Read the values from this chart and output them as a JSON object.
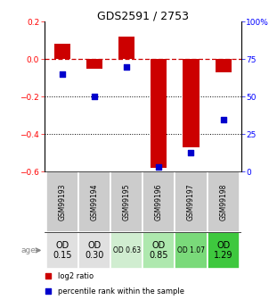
{
  "title": "GDS2591 / 2753",
  "samples": [
    "GSM99193",
    "GSM99194",
    "GSM99195",
    "GSM99196",
    "GSM99197",
    "GSM99198"
  ],
  "log2_ratio": [
    0.08,
    -0.05,
    0.12,
    -0.58,
    -0.47,
    -0.07
  ],
  "percentile_rank": [
    65,
    50,
    70,
    3,
    13,
    35
  ],
  "ylim_left": [
    -0.6,
    0.2
  ],
  "ylim_right": [
    0,
    100
  ],
  "yticks_left": [
    -0.6,
    -0.4,
    -0.2,
    0.0,
    0.2
  ],
  "yticks_right": [
    0,
    25,
    50,
    75,
    100
  ],
  "ytick_labels_right": [
    "0",
    "25",
    "50",
    "75",
    "100%"
  ],
  "bar_color": "#cc0000",
  "dot_color": "#0000cc",
  "hline_color": "#cc0000",
  "dotted_hlines": [
    -0.2,
    -0.4
  ],
  "od_labels": [
    "OD\n0.15",
    "OD\n0.30",
    "OD 0.63",
    "OD\n0.85",
    "OD 1.07",
    "OD\n1.29"
  ],
  "od_large_idx": [
    0,
    1,
    3,
    5
  ],
  "od_small_idx": [
    2,
    4
  ],
  "od_colors": [
    "#e0e0e0",
    "#e0e0e0",
    "#d0edd0",
    "#aee8ae",
    "#7ada7a",
    "#3ec83e"
  ],
  "age_label": "age",
  "legend_items": [
    "log2 ratio",
    "percentile rank within the sample"
  ],
  "legend_colors": [
    "#cc0000",
    "#0000cc"
  ],
  "bar_width": 0.5,
  "sample_label_bg": "#cccccc",
  "title_fontsize": 9,
  "bar_label_fontsize_large": 7,
  "bar_label_fontsize_small": 5.5
}
